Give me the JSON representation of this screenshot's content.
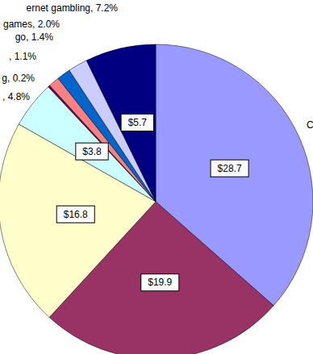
{
  "chart_data": {
    "type": "pie",
    "categories": [
      "C",
      null,
      null,
      ", 4.8%",
      "g, 0.2%",
      ", 1.1%",
      "go, 1.4%",
      "games, 2.0%",
      "ernet gambling, 7.2%"
    ],
    "values": [
      28.7,
      19.9,
      16.8,
      3.8,
      0.16,
      0.87,
      1.1,
      1.58,
      5.7
    ],
    "value_labels": [
      "$28.7",
      "$19.9",
      "$16.8",
      "$3.8",
      null,
      null,
      null,
      null,
      "$5.7"
    ],
    "colors": [
      "#9999FF",
      "#993366",
      "#FFFFCC",
      "#CCFFFF",
      "#660066",
      "#FF8080",
      "#0066CC",
      "#CCCCFF",
      "#000080"
    ],
    "data_labels": true
  }
}
